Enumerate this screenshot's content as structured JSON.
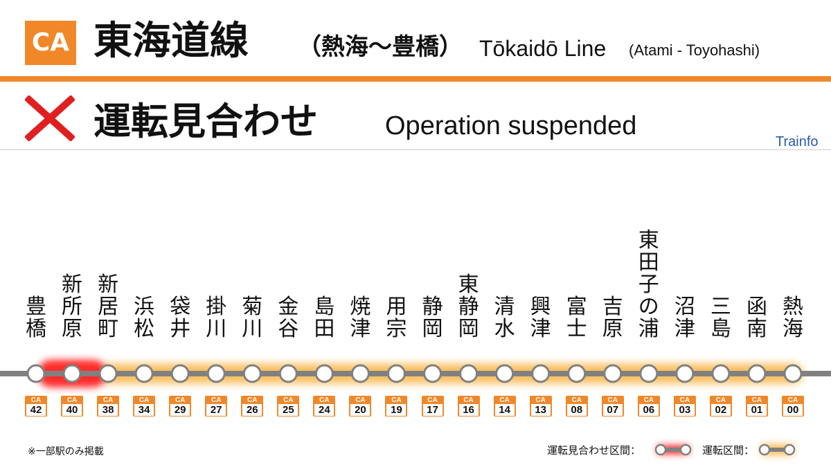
{
  "header": {
    "line_code": "CA",
    "title_jp": "東海道線",
    "section_jp": "（熱海～豊橋）",
    "title_en": "Tōkaidō Line",
    "section_en": "(Atami - Toyohashi)"
  },
  "status": {
    "icon": "cross-mark-icon",
    "text_jp": "運転見合わせ",
    "text_en": "Operation suspended"
  },
  "brand": "Trainfo",
  "colors": {
    "accent": "#f0882a",
    "suspended": "#ff2020",
    "operating_glow": "#f6a623",
    "track": "#808080",
    "cross": "#e02020",
    "brand": "#2a5aa8"
  },
  "stations": [
    {
      "name": "豊\n橋",
      "code_prefix": "CA",
      "code_num": "42"
    },
    {
      "name": "新\n所\n原",
      "code_prefix": "CA",
      "code_num": "40"
    },
    {
      "name": "新\n居\n町",
      "code_prefix": "CA",
      "code_num": "38"
    },
    {
      "name": "浜\n松",
      "code_prefix": "CA",
      "code_num": "34"
    },
    {
      "name": "袋\n井",
      "code_prefix": "CA",
      "code_num": "29"
    },
    {
      "name": "掛\n川",
      "code_prefix": "CA",
      "code_num": "27"
    },
    {
      "name": "菊\n川",
      "code_prefix": "CA",
      "code_num": "26"
    },
    {
      "name": "金\n谷",
      "code_prefix": "CA",
      "code_num": "25"
    },
    {
      "name": "島\n田",
      "code_prefix": "CA",
      "code_num": "24"
    },
    {
      "name": "焼\n津",
      "code_prefix": "CA",
      "code_num": "20"
    },
    {
      "name": "用\n宗",
      "code_prefix": "CA",
      "code_num": "19"
    },
    {
      "name": "静\n岡",
      "code_prefix": "CA",
      "code_num": "17"
    },
    {
      "name": "東\n静\n岡",
      "code_prefix": "CA",
      "code_num": "16"
    },
    {
      "name": "清\n水",
      "code_prefix": "CA",
      "code_num": "14"
    },
    {
      "name": "興\n津",
      "code_prefix": "CA",
      "code_num": "13"
    },
    {
      "name": "富\n士",
      "code_prefix": "CA",
      "code_num": "08"
    },
    {
      "name": "吉\n原",
      "code_prefix": "CA",
      "code_num": "07"
    },
    {
      "name": "東\n田\n子\nの\n浦",
      "code_prefix": "CA",
      "code_num": "06"
    },
    {
      "name": "沼\n津",
      "code_prefix": "CA",
      "code_num": "03"
    },
    {
      "name": "三\n島",
      "code_prefix": "CA",
      "code_num": "02"
    },
    {
      "name": "函\n南",
      "code_prefix": "CA",
      "code_num": "01"
    },
    {
      "name": "熱\n海",
      "code_prefix": "CA",
      "code_num": "00"
    }
  ],
  "segments": {
    "suspended": {
      "from": 0,
      "to": 2
    },
    "operating": {
      "from": 2,
      "to": 21
    }
  },
  "footnote": "※一部駅のみ掲載",
  "legend": {
    "suspended_label": "運転見合わせ区間：",
    "operating_label": "運転区間："
  }
}
